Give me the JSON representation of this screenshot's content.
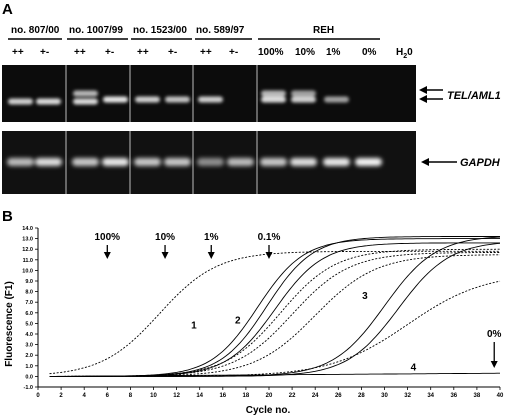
{
  "panel_a": {
    "letter": "A",
    "samples": [
      {
        "name": "no. 807/00",
        "lanes": [
          "++",
          "+-"
        ]
      },
      {
        "name": "no. 1007/99",
        "lanes": [
          "++",
          "+-"
        ]
      },
      {
        "name": "no. 1523/00",
        "lanes": [
          "++",
          "+-"
        ]
      },
      {
        "name": "no. 589/97",
        "lanes": [
          "++",
          "+-"
        ]
      }
    ],
    "reh": {
      "name": "REH",
      "dilutions": [
        "100%",
        "10%",
        "1%",
        "0%"
      ]
    },
    "water": {
      "prefix": "H",
      "subscript": "2",
      "suffix": "0"
    },
    "gel_top_label": "TEL/AML1",
    "gel_bottom_label": "GAPDH"
  },
  "panel_b": {
    "letter": "B",
    "chart_data": {
      "type": "line",
      "ylabel": "Fluorescence (F1)",
      "xlabel": "Cycle no.",
      "xlim": [
        0,
        40
      ],
      "ylim": [
        -1.0,
        14.0
      ],
      "xticks": [
        0,
        2,
        4,
        6,
        8,
        10,
        12,
        14,
        16,
        18,
        20,
        22,
        24,
        26,
        28,
        30,
        32,
        34,
        36,
        38,
        40
      ],
      "yticks": [
        "-1.0",
        "0.0",
        "1.0",
        "2.0",
        "3.0",
        "4.0",
        "5.0",
        "6.0",
        "7.0",
        "8.0",
        "9.0",
        "10.0",
        "11.0",
        "12.0",
        "13.0",
        "14.0"
      ],
      "arrows": [
        {
          "label": "100%",
          "x": 6
        },
        {
          "label": "10%",
          "x": 11
        },
        {
          "label": "1%",
          "x": 15
        },
        {
          "label": "0.1%",
          "x": 20
        },
        {
          "label": "0%",
          "x": 39.5
        }
      ],
      "curve_labels": [
        {
          "label": "1",
          "x": 13.5,
          "y": 4.5
        },
        {
          "label": "2",
          "x": 17.3,
          "y": 5.0
        },
        {
          "label": "3",
          "x": 28.3,
          "y": 7.3
        },
        {
          "label": "4",
          "x": 32.5,
          "y": 0.55
        }
      ],
      "series": [
        {
          "style": "solid",
          "ymax": 13.0,
          "mid": 19.0,
          "k": 0.5,
          "start": 1
        },
        {
          "style": "solid",
          "ymax": 13.2,
          "mid": 19.8,
          "k": 0.5,
          "start": 1
        },
        {
          "style": "solid",
          "ymax": 12.6,
          "mid": 20.5,
          "k": 0.48,
          "start": 1
        },
        {
          "style": "solid",
          "ymax": 13.3,
          "mid": 30.0,
          "k": 0.45,
          "start": 1
        },
        {
          "style": "solid",
          "ymax": 12.8,
          "mid": 31.2,
          "k": 0.45,
          "start": 1
        },
        {
          "style": "dotted",
          "ymax": 11.8,
          "mid": 10.5,
          "k": 0.4,
          "start": 1
        },
        {
          "style": "dotted",
          "ymax": 12.0,
          "mid": 21.0,
          "k": 0.42,
          "start": 1
        },
        {
          "style": "dotted",
          "ymax": 11.7,
          "mid": 22.0,
          "k": 0.4,
          "start": 1
        },
        {
          "style": "dotted",
          "ymax": 11.5,
          "mid": 24.0,
          "k": 0.38,
          "start": 1
        },
        {
          "style": "dotted",
          "ymax": 9.8,
          "mid": 32.0,
          "k": 0.3,
          "start": 1
        },
        {
          "style": "solid",
          "ymax": 0.3,
          "mid": 40.0,
          "k": 0.05,
          "start": 1,
          "flat": true
        }
      ]
    }
  }
}
